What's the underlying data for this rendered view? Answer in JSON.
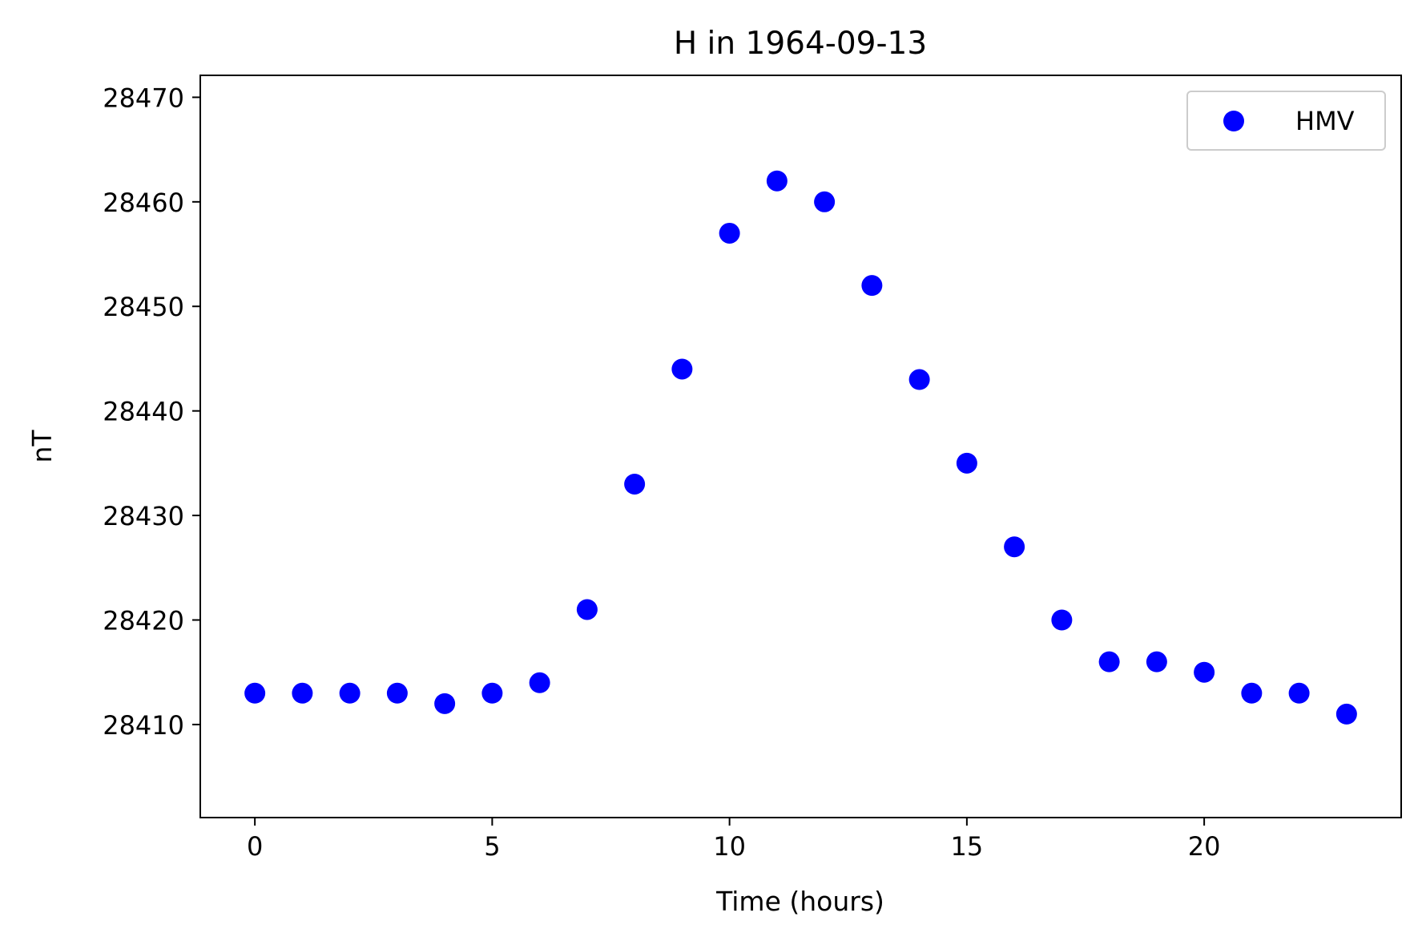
{
  "chart_data": {
    "type": "scatter",
    "title": "H in 1964-09-13",
    "xlabel": "Time (hours)",
    "ylabel": "nT",
    "xlim": [
      -1.15,
      24.15
    ],
    "ylim": [
      28401.1,
      28472.1
    ],
    "xticks": [
      0,
      5,
      10,
      15,
      20
    ],
    "yticks": [
      28410,
      28420,
      28430,
      28440,
      28450,
      28460,
      28470
    ],
    "grid": false,
    "legend_position": "top-right",
    "series": [
      {
        "name": "HMV",
        "color": "#0000ff",
        "marker": "circle",
        "x": [
          0,
          1,
          2,
          3,
          4,
          5,
          6,
          7,
          8,
          9,
          10,
          11,
          12,
          13,
          14,
          15,
          16,
          17,
          18,
          19,
          20,
          21,
          22,
          23
        ],
        "y": [
          28413,
          28413,
          28413,
          28413,
          28412,
          28413,
          28414,
          28421,
          28433,
          28444,
          28457,
          28462,
          28460,
          28452,
          28443,
          28435,
          28427,
          28420,
          28416,
          28416,
          28415,
          28413,
          28413,
          28411
        ]
      }
    ]
  }
}
